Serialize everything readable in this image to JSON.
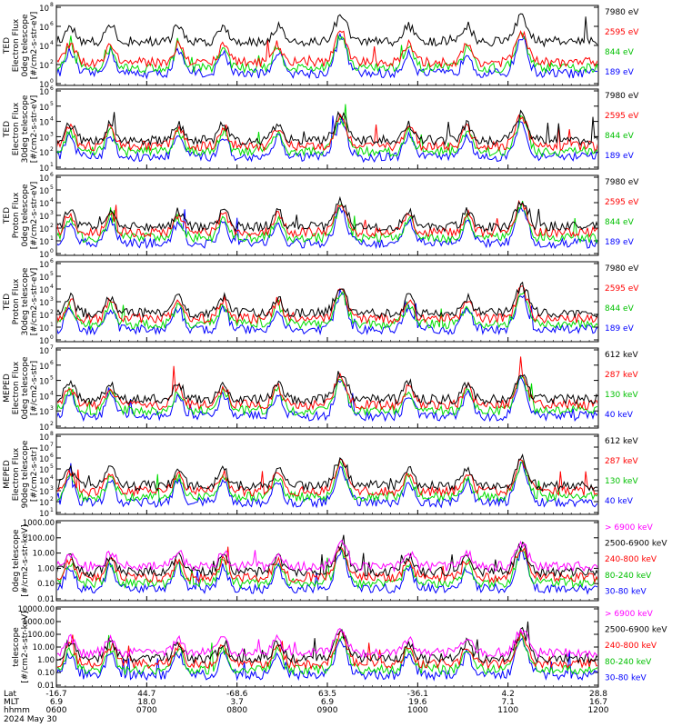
{
  "chart_data": {
    "type": "line",
    "x_axis": {
      "rows": [
        {
          "label": "Lat",
          "ticks": [
            "-16.7",
            "44.7",
            "-68.6",
            "63.5",
            "-36.1",
            "4.2",
            "28.8"
          ]
        },
        {
          "label": "MLT",
          "ticks": [
            "6.9",
            "18.0",
            "3.7",
            "6.9",
            "19.6",
            "7.1",
            "16.7"
          ]
        },
        {
          "label": "hhmm",
          "ticks": [
            "0600",
            "0700",
            "0800",
            "0900",
            "1000",
            "1100",
            "1200"
          ]
        }
      ],
      "date": "2024 May 30"
    },
    "panels": [
      {
        "ylabel": [
          "TED",
          "Electron Flux",
          "0deg telescope",
          "[#/cm2-s-str-eV]"
        ],
        "ytick_exponents": [
          8,
          6,
          4,
          2,
          0
        ],
        "log": true,
        "series": [
          {
            "name": "7980 eV",
            "color": "#000000"
          },
          {
            "name": "2595 eV",
            "color": "#ff0000"
          },
          {
            "name": "844 eV",
            "color": "#00cc00"
          },
          {
            "name": "189 eV",
            "color": "#0000ff"
          }
        ]
      },
      {
        "ylabel": [
          "TED",
          "Electron Flux",
          "30deg telescope",
          "[#/cm2-s-str-eV]"
        ],
        "ytick_exponents": [
          6,
          5,
          4,
          3,
          2,
          1
        ],
        "log": true,
        "series": [
          {
            "name": "7980 eV",
            "color": "#000000"
          },
          {
            "name": "2595 eV",
            "color": "#ff0000"
          },
          {
            "name": "844 eV",
            "color": "#00cc00"
          },
          {
            "name": "189 eV",
            "color": "#0000ff"
          }
        ]
      },
      {
        "ylabel": [
          "TED",
          "Proton Flux",
          "0deg telescope",
          "[#/cm2-s-str-eV]"
        ],
        "ytick_exponents": [
          6,
          5,
          4,
          3,
          2,
          1,
          0
        ],
        "log": true,
        "series": [
          {
            "name": "7980 eV",
            "color": "#000000"
          },
          {
            "name": "2595 eV",
            "color": "#ff0000"
          },
          {
            "name": "844 eV",
            "color": "#00cc00"
          },
          {
            "name": "189 eV",
            "color": "#0000ff"
          }
        ]
      },
      {
        "ylabel": [
          "TED",
          "Proton Flux",
          "30deg telescope",
          "[#/cm2-s-str-eV]"
        ],
        "ytick_exponents": [
          6,
          5,
          4,
          3,
          2,
          1,
          0
        ],
        "log": true,
        "series": [
          {
            "name": "7980 eV",
            "color": "#000000"
          },
          {
            "name": "2595 eV",
            "color": "#ff0000"
          },
          {
            "name": "844 eV",
            "color": "#00cc00"
          },
          {
            "name": "189 eV",
            "color": "#0000ff"
          }
        ]
      },
      {
        "ylabel": [
          "MEPED",
          "Electron Flux",
          "0deg telescope",
          "[#/cm2-s-str]"
        ],
        "ytick_exponents": [
          7,
          6,
          5,
          4,
          3,
          2
        ],
        "log": true,
        "series": [
          {
            "name": "612 keV",
            "color": "#000000"
          },
          {
            "name": "287 keV",
            "color": "#ff0000"
          },
          {
            "name": "130 keV",
            "color": "#00cc00"
          },
          {
            "name": "40 keV",
            "color": "#0000ff"
          }
        ]
      },
      {
        "ylabel": [
          "MEPED",
          "Electron Flux",
          "90deg telescope",
          "[#/cm2-s-str]"
        ],
        "ytick_exponents": [
          8,
          7,
          6,
          5,
          4,
          3,
          2,
          1
        ],
        "log": true,
        "series": [
          {
            "name": "612 keV",
            "color": "#000000"
          },
          {
            "name": "287 keV",
            "color": "#ff0000"
          },
          {
            "name": "130 keV",
            "color": "#00cc00"
          },
          {
            "name": "40 keV",
            "color": "#0000ff"
          }
        ]
      },
      {
        "ylabel": [
          "0deg telescope",
          "[#/cm2-s-str-keV]"
        ],
        "ytick_labels": [
          "1000.00",
          "100.00",
          "10.00",
          "1.00",
          "0.10",
          "0.01"
        ],
        "log": true,
        "series": [
          {
            "name": "> 6900 keV",
            "color": "#ff00ff"
          },
          {
            "name": "2500-6900 keV",
            "color": "#000000"
          },
          {
            "name": "240-800 keV",
            "color": "#ff0000"
          },
          {
            "name": "80-240 keV",
            "color": "#00cc00"
          },
          {
            "name": "30-80 keV",
            "color": "#0000ff"
          }
        ]
      },
      {
        "ylabel": [
          "telescope",
          "[#/cm2-s-str-keV]"
        ],
        "ytick_labels": [
          "10000.00",
          "1000.00",
          "100.00",
          "10.00",
          "1.00",
          "0.10",
          "0.01"
        ],
        "log": true,
        "series": [
          {
            "name": "> 6900 keV",
            "color": "#ff00ff"
          },
          {
            "name": "2500-6900 keV",
            "color": "#000000"
          },
          {
            "name": "240-800 keV",
            "color": "#ff0000"
          },
          {
            "name": "80-240 keV",
            "color": "#00cc00"
          },
          {
            "name": "30-80 keV",
            "color": "#0000ff"
          }
        ]
      }
    ],
    "pass_hours": [
      0.15,
      0.6,
      1.35,
      1.85,
      2.45,
      3.15,
      3.9,
      4.55,
      5.15
    ],
    "major_pass_hours": [
      3.15,
      5.15
    ]
  }
}
